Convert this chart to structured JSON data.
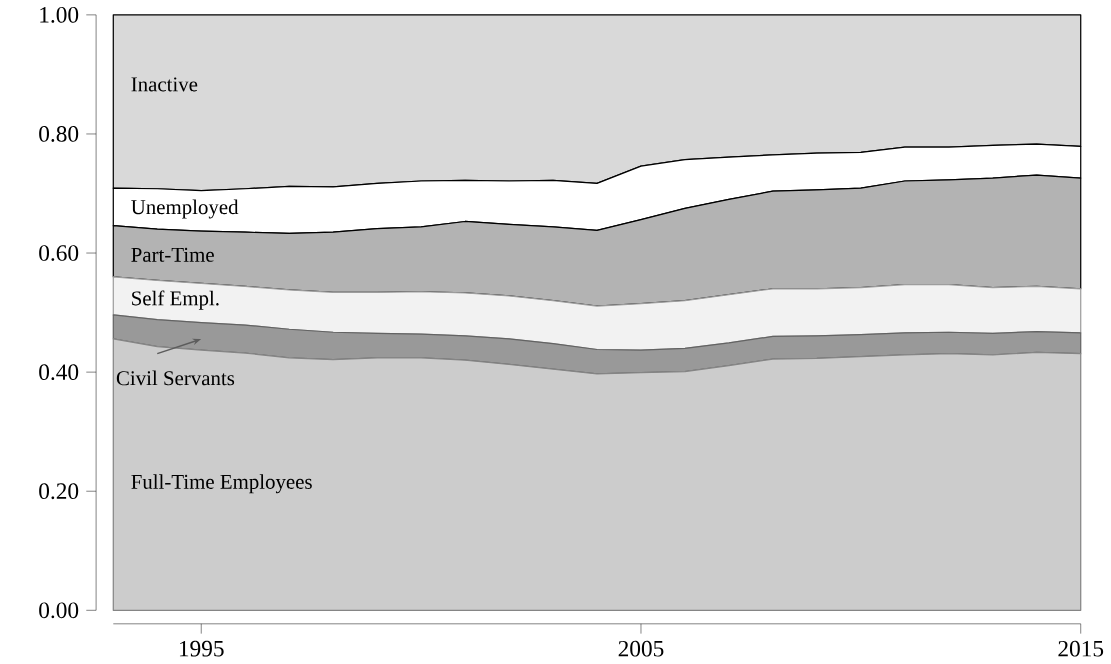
{
  "chart_data": {
    "type": "area",
    "stacked": true,
    "x": [
      1993,
      1994,
      1995,
      1996,
      1997,
      1998,
      1999,
      2000,
      2001,
      2002,
      2003,
      2004,
      2005,
      2006,
      2007,
      2008,
      2009,
      2010,
      2011,
      2012,
      2013,
      2014,
      2015
    ],
    "series": [
      {
        "name": "Full-Time Employees",
        "color": "#cccccc",
        "values": [
          0.456,
          0.443,
          0.437,
          0.432,
          0.424,
          0.421,
          0.424,
          0.424,
          0.42,
          0.413,
          0.405,
          0.397,
          0.399,
          0.401,
          0.411,
          0.422,
          0.423,
          0.426,
          0.429,
          0.431,
          0.429,
          0.433,
          0.431
        ]
      },
      {
        "name": "Civil Servants",
        "color": "#999999",
        "values": [
          0.04,
          0.045,
          0.046,
          0.047,
          0.048,
          0.046,
          0.041,
          0.04,
          0.041,
          0.043,
          0.043,
          0.041,
          0.038,
          0.039,
          0.038,
          0.038,
          0.038,
          0.037,
          0.037,
          0.036,
          0.036,
          0.035,
          0.035
        ]
      },
      {
        "name": "Self Empl.",
        "color": "#f2f2f2",
        "values": [
          0.064,
          0.066,
          0.066,
          0.065,
          0.066,
          0.067,
          0.069,
          0.071,
          0.072,
          0.072,
          0.072,
          0.073,
          0.078,
          0.08,
          0.081,
          0.08,
          0.079,
          0.079,
          0.081,
          0.08,
          0.077,
          0.076,
          0.074
        ]
      },
      {
        "name": "Part-Time",
        "color": "#b3b3b3",
        "values": [
          0.086,
          0.086,
          0.088,
          0.091,
          0.095,
          0.101,
          0.107,
          0.109,
          0.12,
          0.12,
          0.124,
          0.127,
          0.141,
          0.155,
          0.16,
          0.164,
          0.166,
          0.167,
          0.174,
          0.176,
          0.184,
          0.187,
          0.186
        ]
      },
      {
        "name": "Unemployed",
        "color": "#ffffff",
        "values": [
          0.063,
          0.068,
          0.068,
          0.073,
          0.079,
          0.076,
          0.076,
          0.077,
          0.069,
          0.073,
          0.078,
          0.079,
          0.09,
          0.082,
          0.071,
          0.061,
          0.062,
          0.06,
          0.057,
          0.055,
          0.055,
          0.052,
          0.053
        ]
      },
      {
        "name": "Inactive",
        "color": "#d9d9d9",
        "values": [
          0.291,
          0.292,
          0.295,
          0.292,
          0.288,
          0.289,
          0.283,
          0.279,
          0.278,
          0.279,
          0.278,
          0.283,
          0.254,
          0.243,
          0.239,
          0.235,
          0.232,
          0.231,
          0.222,
          0.222,
          0.219,
          0.217,
          0.221
        ]
      }
    ],
    "xlim": [
      1993,
      2015
    ],
    "xticks": [
      1995,
      2005,
      2015
    ],
    "ylim": [
      0,
      1
    ],
    "yticks": [
      {
        "value": 0,
        "label": "0.00"
      },
      {
        "value": 0.2,
        "label": "0.20"
      },
      {
        "value": 0.4,
        "label": "0.40"
      },
      {
        "value": 0.6,
        "label": "0.60"
      },
      {
        "value": 0.8,
        "label": "0.80"
      },
      {
        "value": 1,
        "label": "1.00"
      }
    ],
    "ylabel": null
  }
}
